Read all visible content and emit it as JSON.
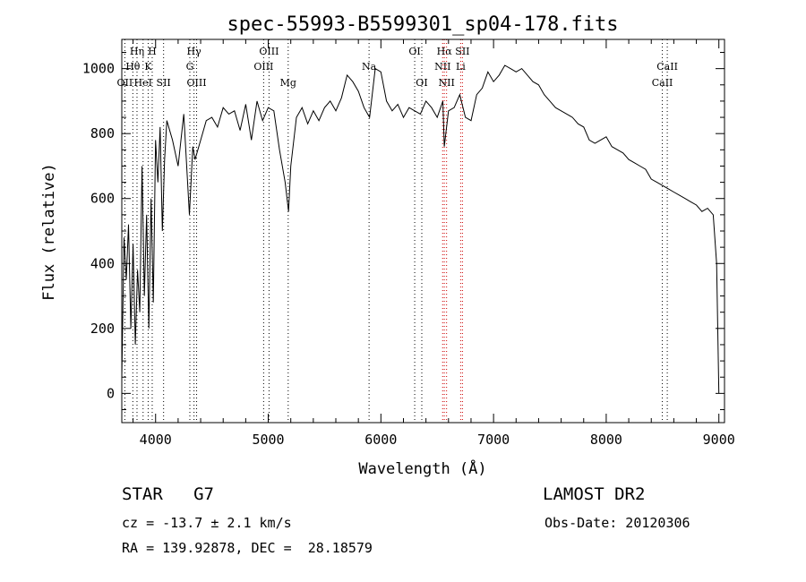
{
  "chart_data": {
    "type": "line",
    "title": "spec-55993-B5599301_sp04-178.fits",
    "xlabel": "Wavelength (Å)",
    "ylabel": "Flux (relative)",
    "xlim": [
      3700,
      9050
    ],
    "ylim": [
      -90,
      1090
    ],
    "xticks": [
      4000,
      5000,
      6000,
      7000,
      8000,
      9000
    ],
    "yticks": [
      0,
      200,
      400,
      600,
      800,
      1000
    ],
    "grid": false,
    "series": [
      {
        "x": [
          3700,
          3720,
          3740,
          3760,
          3780,
          3800,
          3820,
          3840,
          3860,
          3880,
          3900,
          3920,
          3940,
          3960,
          3980,
          4000,
          4020,
          4040,
          4060,
          4080,
          4100,
          4150,
          4200,
          4250,
          4300,
          4330,
          4350,
          4400,
          4450,
          4500,
          4550,
          4600,
          4650,
          4700,
          4750,
          4800,
          4850,
          4900,
          4950,
          5000,
          5050,
          5100,
          5150,
          5180,
          5200,
          5250,
          5300,
          5350,
          5400,
          5450,
          5500,
          5550,
          5600,
          5650,
          5700,
          5750,
          5800,
          5850,
          5900,
          5950,
          6000,
          6050,
          6100,
          6150,
          6200,
          6250,
          6300,
          6350,
          6400,
          6450,
          6500,
          6550,
          6563,
          6600,
          6650,
          6700,
          6750,
          6800,
          6850,
          6900,
          6950,
          7000,
          7050,
          7100,
          7150,
          7200,
          7250,
          7300,
          7350,
          7400,
          7450,
          7500,
          7550,
          7600,
          7650,
          7700,
          7750,
          7800,
          7850,
          7900,
          7950,
          8000,
          8050,
          8100,
          8150,
          8200,
          8250,
          8300,
          8350,
          8400,
          8450,
          8500,
          8550,
          8600,
          8650,
          8700,
          8750,
          8800,
          8850,
          8900,
          8950,
          8980,
          9000
        ],
        "y": [
          50,
          480,
          350,
          520,
          200,
          460,
          150,
          380,
          250,
          700,
          300,
          550,
          200,
          600,
          280,
          780,
          650,
          820,
          500,
          720,
          840,
          780,
          700,
          860,
          550,
          760,
          720,
          780,
          840,
          850,
          820,
          880,
          860,
          870,
          810,
          890,
          780,
          900,
          840,
          880,
          870,
          750,
          650,
          560,
          700,
          850,
          880,
          830,
          870,
          840,
          880,
          900,
          870,
          910,
          980,
          960,
          930,
          880,
          850,
          1000,
          990,
          900,
          870,
          890,
          850,
          880,
          870,
          860,
          900,
          880,
          850,
          900,
          760,
          870,
          880,
          920,
          850,
          840,
          920,
          940,
          990,
          960,
          980,
          1010,
          1000,
          990,
          1000,
          980,
          960,
          950,
          920,
          900,
          880,
          870,
          860,
          850,
          830,
          820,
          780,
          770,
          780,
          790,
          760,
          750,
          740,
          720,
          710,
          700,
          690,
          660,
          650,
          640,
          630,
          620,
          610,
          600,
          590,
          580,
          560,
          570,
          550,
          400,
          0
        ]
      }
    ],
    "line_markers": [
      {
        "w": 3727,
        "label": "OII",
        "row": 3,
        "color": "#000000"
      },
      {
        "w": 3798,
        "label": "Hθ",
        "row": 2,
        "color": "#000000"
      },
      {
        "w": 3835,
        "label": "Hη",
        "row": 1,
        "color": "#000000"
      },
      {
        "w": 3889,
        "label": "HeI",
        "row": 3,
        "color": "#000000"
      },
      {
        "w": 3934,
        "label": "K",
        "row": 2,
        "color": "#000000"
      },
      {
        "w": 3970,
        "label": "H",
        "row": 1,
        "color": "#000000"
      },
      {
        "w": 4071,
        "label": "SII",
        "row": 3,
        "color": "#000000"
      },
      {
        "w": 4304,
        "label": "G",
        "row": 2,
        "color": "#000000"
      },
      {
        "w": 4341,
        "label": "Hγ",
        "row": 1,
        "color": "#000000"
      },
      {
        "w": 4364,
        "label": "OIII",
        "row": 3,
        "color": "#000000"
      },
      {
        "w": 4959,
        "label": "OIII",
        "row": 2,
        "color": "#000000"
      },
      {
        "w": 5007,
        "label": "OIII",
        "row": 1,
        "color": "#000000"
      },
      {
        "w": 5177,
        "label": "Mg",
        "row": 4,
        "color": "#000000"
      },
      {
        "w": 5895,
        "label": "Na",
        "row": 2,
        "color": "#000000"
      },
      {
        "w": 6300,
        "label": "OI",
        "row": 1,
        "color": "#000000"
      },
      {
        "w": 6363,
        "label": "OI",
        "row": 3,
        "color": "#000000"
      },
      {
        "w": 6548,
        "label": "NII",
        "row": 2,
        "color": "#cc0000"
      },
      {
        "w": 6563,
        "label": "Hα",
        "row": 1,
        "color": "#cc0000"
      },
      {
        "w": 6583,
        "label": "NII",
        "row": 3,
        "color": "#cc0000"
      },
      {
        "w": 6708,
        "label": "Li",
        "row": 2,
        "color": "#cc0000"
      },
      {
        "w": 6724,
        "label": "SII",
        "row": 1,
        "color": "#cc0000"
      },
      {
        "w": 8498,
        "label": "CaII",
        "row": 3,
        "color": "#000000"
      },
      {
        "w": 8542,
        "label": "CaII",
        "row": 2,
        "color": "#000000"
      }
    ]
  },
  "footer": {
    "class_text": "STAR   G7",
    "survey": "LAMOST DR2",
    "cz": "cz = -13.7 ± 2.1 km/s",
    "obs_date": "Obs-Date: 20120306",
    "coords": "RA = 139.92878, DEC =  28.18579"
  }
}
